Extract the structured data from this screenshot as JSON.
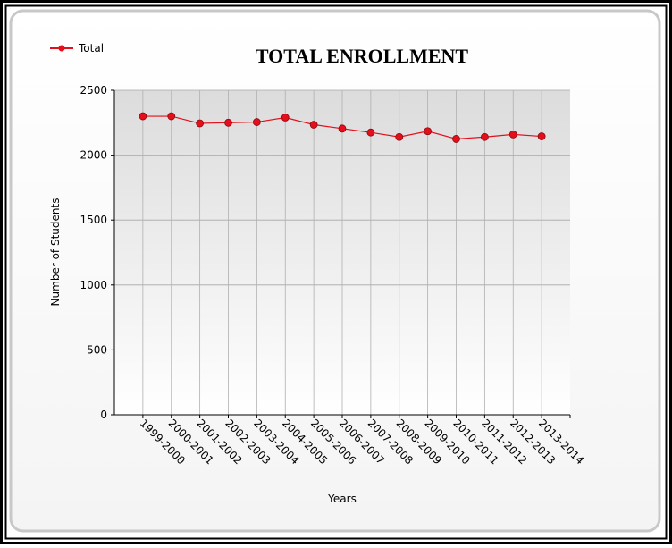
{
  "chart_data": {
    "type": "line",
    "title": "TOTAL ENROLLMENT",
    "x_label": "Years",
    "y_label": "Number of Students",
    "categories": [
      "1999-2000",
      "2000-2001",
      "2001-2002",
      "2002-2003",
      "2003-2004",
      "2004-2005",
      "2005-2006",
      "2006-2007",
      "2007-2008",
      "2008-2009",
      "2009-2010",
      "2010-2011",
      "2011-2012",
      "2012-2013",
      "2013-2014"
    ],
    "series": [
      {
        "name": "Total",
        "color": "#e3101c",
        "values": [
          2300,
          2300,
          2245,
          2250,
          2255,
          2290,
          2235,
          2205,
          2175,
          2140,
          2185,
          2125,
          2140,
          2160,
          2145
        ]
      }
    ],
    "ylim": [
      0,
      2500
    ],
    "yticks": [
      0,
      500,
      1000,
      1500,
      2000,
      2500
    ],
    "grid": true,
    "legend": "top-left"
  }
}
